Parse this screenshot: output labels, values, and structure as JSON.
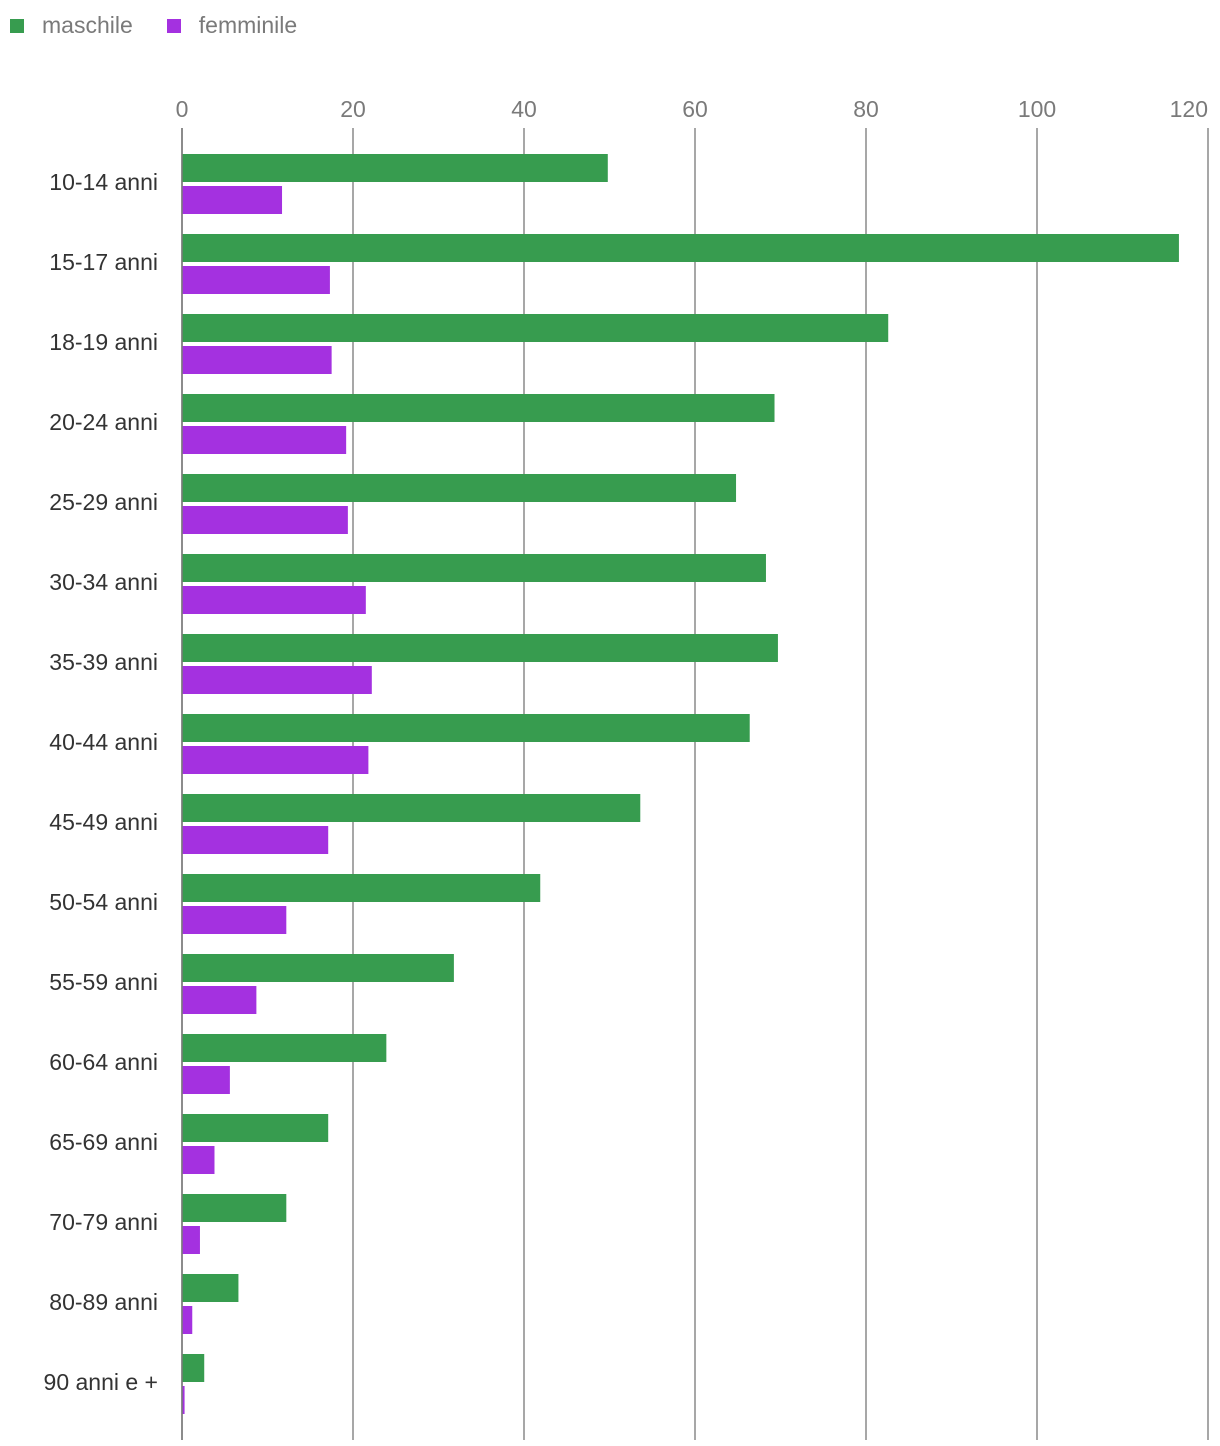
{
  "chart_data": {
    "type": "bar",
    "orientation": "horizontal",
    "title": "",
    "xlabel": "",
    "ylabel": "",
    "xlim": [
      0,
      120
    ],
    "ticks": [
      0,
      20,
      40,
      60,
      80,
      100,
      120
    ],
    "grid": true,
    "legend_position": "top-left",
    "categories": [
      "10-14 anni",
      "15-17 anni",
      "18-19 anni",
      "20-24 anni",
      "25-29 anni",
      "30-34 anni",
      "35-39 anni",
      "40-44 anni",
      "45-49 anni",
      "50-54 anni",
      "55-59 anni",
      "60-64 anni",
      "65-69 anni",
      "70-79 anni",
      "80-89 anni",
      "90 anni e +"
    ],
    "series": [
      {
        "name": "maschile",
        "color": "#379c4f",
        "values": [
          49.8,
          116.6,
          82.6,
          69.3,
          64.8,
          68.3,
          69.7,
          66.4,
          53.6,
          41.9,
          31.8,
          23.9,
          17.1,
          12.2,
          6.6,
          2.6
        ]
      },
      {
        "name": "femminile",
        "color": "#a431e0",
        "values": [
          11.7,
          17.3,
          17.5,
          19.2,
          19.4,
          21.5,
          22.2,
          21.8,
          17.1,
          12.2,
          8.7,
          5.6,
          3.8,
          2.1,
          1.2,
          0.3
        ]
      }
    ]
  }
}
